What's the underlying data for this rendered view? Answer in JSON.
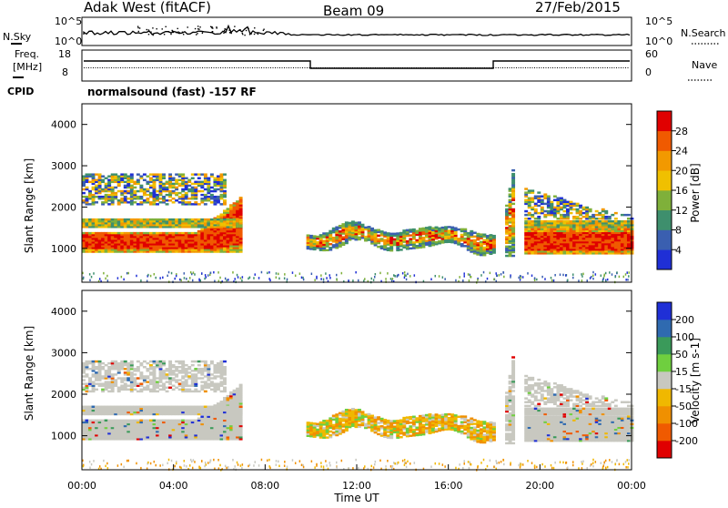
{
  "header": {
    "station": "Adak West (fitACF)",
    "beam": "Beam 09",
    "date": "27/Feb/2015"
  },
  "top_panel": {
    "left_label": "N.Sky",
    "right_label": "N.Search",
    "left_ticks": [
      "10^5",
      "10^0"
    ],
    "right_ticks": [
      "10^5",
      "10^0"
    ]
  },
  "freq_panel": {
    "left_label_line1": "Freq.",
    "left_label_line2": "[MHz]",
    "left_ticks": [
      "18",
      "8"
    ],
    "right_label": "Nave",
    "right_ticks": [
      "60",
      "0"
    ],
    "cpid_label": "CPID",
    "cpid_text": "normalsound (fast) -157 RF"
  },
  "colors": {
    "power_scale": [
      "#1f2fd6",
      "#3a5fb0",
      "#3e8f6d",
      "#7fb03a",
      "#f0c000",
      "#f29900",
      "#f05a00",
      "#e00000"
    ],
    "velocity_scale": [
      "#e00000",
      "#f05a00",
      "#f09000",
      "#f0b800",
      "#c8c8c0",
      "#6fcf3f",
      "#3a9a5a",
      "#2f6ab0",
      "#1f2fd6"
    ]
  },
  "chart_data": [
    {
      "type": "heatmap",
      "title": "Power",
      "ylabel": "Slant Range [km]",
      "ylim": [
        180,
        4500
      ],
      "xlim": [
        "00:00",
        "24:00"
      ],
      "y_ticks": [
        1000,
        2000,
        3000,
        4000
      ],
      "colorbar": {
        "label": "Power [dB]",
        "ticks": [
          "4",
          "8",
          "12",
          "16",
          "20",
          "24",
          "28"
        ]
      }
    },
    {
      "type": "heatmap",
      "title": "Velocity",
      "ylabel": "Slant Range [km]",
      "xlabel": "Time UT",
      "ylim": [
        180,
        4500
      ],
      "x_ticks": [
        "00:00",
        "04:00",
        "08:00",
        "12:00",
        "16:00",
        "20:00",
        "00:00"
      ],
      "y_ticks": [
        1000,
        2000,
        3000,
        4000
      ],
      "colorbar": {
        "label": "Velocity [m s-1]",
        "ticks": [
          "-200",
          "-100",
          "-50",
          "-15",
          "15",
          "50",
          "100",
          "200"
        ]
      }
    }
  ]
}
